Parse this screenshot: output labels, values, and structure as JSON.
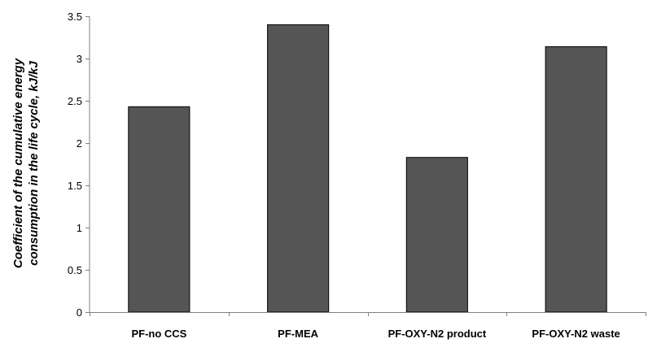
{
  "chart_data": {
    "type": "bar",
    "title": "",
    "xlabel": "",
    "ylabel_lines": [
      "Coefficient of the cumulative energy",
      "consumption in the life cycle, kJ/kJ"
    ],
    "categories": [
      "PF-no CCS",
      "PF-MEA",
      "PF-OXY-N2 product",
      "PF-OXY-N2 waste"
    ],
    "values": [
      2.43,
      3.4,
      1.83,
      3.14
    ],
    "ylim": [
      0,
      3.5
    ],
    "yticks": [
      0,
      0.5,
      1,
      1.5,
      2,
      2.5,
      3,
      3.5
    ],
    "ytick_labels": [
      "0",
      "0.5",
      "1",
      "1.5",
      "2",
      "2.5",
      "3",
      "3.5"
    ],
    "grid": false,
    "legend": "none",
    "bar_color": "#555555",
    "bar_edge_color": "#000000",
    "axis_color": "#808080"
  }
}
